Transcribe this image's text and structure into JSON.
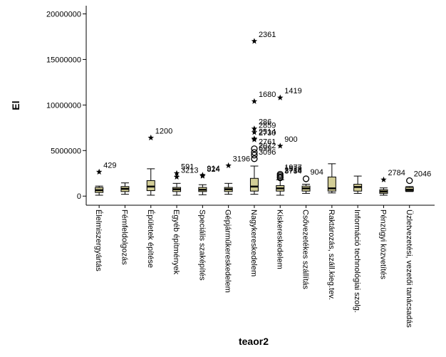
{
  "chart_data": {
    "type": "box",
    "x_label": "teaor2",
    "y_label": "El",
    "ylim": [
      -1000000,
      20900000
    ],
    "yticks": [
      0,
      5000000,
      10000000,
      15000000,
      20000000
    ],
    "box_color": "#d3ce97",
    "categories": [
      "Élelmiszergyártás",
      "Fémfeldolgozás",
      "Épületek építése",
      "Egyéb építmények",
      "Speciális szaképítés",
      "Gépjárműkereskedelem",
      "Nagykereskedelem",
      "Kiskereskedelem",
      "Csővezetékes szállítás",
      "Raktározás, száll.kieg.tev.",
      "Információ technológiai szolg.",
      "Pénzügyi közvetítés",
      "Üzletvezetési, vezetői tanácsadás"
    ],
    "boxes": [
      {
        "low": 100000,
        "q1": 400000,
        "median": 650000,
        "q3": 950000,
        "high": 1100000,
        "outliers": [
          {
            "value": 2650000,
            "label": "429",
            "kind": "star"
          }
        ]
      },
      {
        "low": 200000,
        "q1": 500000,
        "median": 800000,
        "q3": 1050000,
        "high": 1450000,
        "outliers": []
      },
      {
        "low": 100000,
        "q1": 600000,
        "median": 1050000,
        "q3": 1700000,
        "high": 3000000,
        "outliers": [
          {
            "value": 6400000,
            "label": "1200",
            "kind": "star"
          }
        ]
      },
      {
        "low": 100000,
        "q1": 500000,
        "median": 750000,
        "q3": 950000,
        "high": 1400000,
        "outliers": [
          {
            "value": 2500000,
            "label": "591",
            "kind": "star"
          },
          {
            "value": 2100000,
            "label": "3213",
            "kind": "star"
          }
        ]
      },
      {
        "low": 150000,
        "q1": 500000,
        "median": 700000,
        "q3": 950000,
        "high": 1250000,
        "outliers": [
          {
            "value": 2200000,
            "label": "824",
            "kind": "star"
          },
          {
            "value": 2300000,
            "label": "914",
            "kind": "star"
          }
        ]
      },
      {
        "low": 200000,
        "q1": 500000,
        "median": 750000,
        "q3": 950000,
        "high": 1400000,
        "outliers": [
          {
            "value": 3350000,
            "label": "3196",
            "kind": "star"
          }
        ]
      },
      {
        "low": 200000,
        "q1": 550000,
        "median": 1050000,
        "q3": 1950000,
        "high": 3300000,
        "outliers": [
          {
            "value": 17000000,
            "label": "2361",
            "kind": "star"
          },
          {
            "value": 10400000,
            "label": "1680",
            "kind": "star"
          },
          {
            "value": 7400000,
            "label": "286",
            "kind": "star"
          },
          {
            "value": 7000000,
            "label": "2859",
            "kind": "star"
          },
          {
            "value": 6300000,
            "label": "2514",
            "kind": "star"
          },
          {
            "value": 6200000,
            "label": "2730",
            "kind": "star"
          },
          {
            "value": 5200000,
            "label": "2761",
            "kind": "circle"
          },
          {
            "value": 4800000,
            "label": "2072",
            "kind": "circle"
          },
          {
            "value": 4500000,
            "label": "699",
            "kind": "circle"
          },
          {
            "value": 4100000,
            "label": "3096",
            "kind": "circle"
          }
        ]
      },
      {
        "low": 100000,
        "q1": 550000,
        "median": 850000,
        "q3": 1150000,
        "high": 1800000,
        "outliers": [
          {
            "value": 10800000,
            "label": "1419",
            "kind": "star"
          },
          {
            "value": 5500000,
            "label": "900",
            "kind": "star"
          },
          {
            "value": 2400000,
            "label": "1977",
            "kind": "circle"
          },
          {
            "value": 2250000,
            "label": "1529",
            "kind": "circle"
          },
          {
            "value": 2100000,
            "label": "2716",
            "kind": "circle"
          },
          {
            "value": 2000000,
            "label": "3734",
            "kind": "circle"
          }
        ]
      },
      {
        "low": 300000,
        "q1": 550000,
        "median": 850000,
        "q3": 1100000,
        "high": 1300000,
        "outliers": [
          {
            "value": 1900000,
            "label": "904",
            "kind": "circle"
          }
        ]
      },
      {
        "low": 350000,
        "q1": 550000,
        "median": 850000,
        "q3": 2100000,
        "high": 3550000,
        "outliers": []
      },
      {
        "low": 300000,
        "q1": 550000,
        "median": 1000000,
        "q3": 1300000,
        "high": 2200000,
        "outliers": []
      },
      {
        "low": 100000,
        "q1": 300000,
        "median": 500000,
        "q3": 700000,
        "high": 900000,
        "outliers": [
          {
            "value": 1800000,
            "label": "2784",
            "kind": "star"
          }
        ]
      },
      {
        "low": 500000,
        "q1": 550000,
        "median": 700000,
        "q3": 950000,
        "high": 1050000,
        "outliers": [
          {
            "value": 1700000,
            "label": "2046",
            "kind": "circle"
          }
        ]
      }
    ]
  }
}
